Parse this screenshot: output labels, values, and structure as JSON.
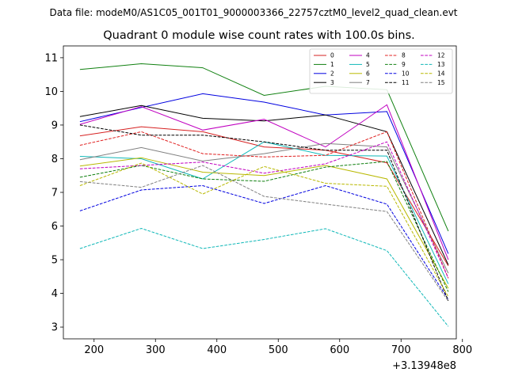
{
  "figure": {
    "suptitle": "Data file: modeM0/AS1C05_001T01_9000003366_22757cztM0_level2_quad_clean.evt"
  },
  "chart_data": {
    "type": "line",
    "title": "Quadrant 0 module wise count rates with 100.0s bins.",
    "xlabel": "",
    "ylabel": "",
    "x_offset_label": "+3.13948e8",
    "x": [
      177,
      277,
      377,
      477,
      577,
      677,
      777
    ],
    "xlim": [
      150,
      790
    ],
    "ylim": [
      2.65,
      11.35
    ],
    "xticks": [
      200,
      300,
      400,
      500,
      600,
      700,
      800
    ],
    "yticks": [
      3,
      4,
      5,
      6,
      7,
      8,
      9,
      10,
      11
    ],
    "legend_position": "upper right",
    "legend_ncol": 4,
    "series": [
      {
        "name": "0",
        "color": "#d62020",
        "dash": "solid",
        "values": [
          8.68,
          8.95,
          8.8,
          8.35,
          8.25,
          7.88,
          4.82
        ]
      },
      {
        "name": "1",
        "color": "#108010",
        "dash": "solid",
        "values": [
          10.65,
          10.82,
          10.7,
          9.88,
          10.15,
          10.05,
          5.85
        ]
      },
      {
        "name": "2",
        "color": "#0000e0",
        "dash": "solid",
        "values": [
          9.1,
          9.52,
          9.93,
          9.68,
          9.3,
          9.4,
          5.18
        ]
      },
      {
        "name": "3",
        "color": "#000000",
        "dash": "solid",
        "values": [
          9.25,
          9.58,
          9.2,
          9.12,
          9.3,
          8.8,
          4.85
        ]
      },
      {
        "name": "4",
        "color": "#c000c0",
        "dash": "solid",
        "values": [
          9.02,
          9.55,
          8.85,
          9.17,
          8.35,
          9.6,
          5.0
        ]
      },
      {
        "name": "5",
        "color": "#10b8b8",
        "dash": "solid",
        "values": [
          8.07,
          8.0,
          7.4,
          8.5,
          8.1,
          8.08,
          4.28
        ]
      },
      {
        "name": "6",
        "color": "#b8b800",
        "dash": "solid",
        "values": [
          7.78,
          8.03,
          7.6,
          7.5,
          7.8,
          7.4,
          4.15
        ]
      },
      {
        "name": "7",
        "color": "#808080",
        "dash": "solid",
        "values": [
          7.97,
          8.33,
          7.93,
          8.15,
          8.45,
          8.35,
          4.6
        ]
      },
      {
        "name": "8",
        "color": "#e02020",
        "dash": "dashed",
        "values": [
          8.4,
          8.8,
          8.15,
          8.05,
          8.1,
          8.8,
          4.45
        ]
      },
      {
        "name": "9",
        "color": "#108010",
        "dash": "dashed",
        "values": [
          7.45,
          7.8,
          7.4,
          7.33,
          7.75,
          7.92,
          4.05
        ]
      },
      {
        "name": "10",
        "color": "#0000e0",
        "dash": "dashed",
        "values": [
          6.45,
          7.07,
          7.2,
          6.67,
          7.2,
          6.65,
          3.82
        ]
      },
      {
        "name": "11",
        "color": "#000000",
        "dash": "dashed",
        "values": [
          9.0,
          8.7,
          8.7,
          8.5,
          8.25,
          8.25,
          3.78
        ]
      },
      {
        "name": "12",
        "color": "#c000c0",
        "dash": "dashed",
        "values": [
          7.7,
          7.8,
          7.9,
          7.57,
          7.85,
          8.5,
          4.45
        ]
      },
      {
        "name": "13",
        "color": "#10b8b8",
        "dash": "dashed",
        "values": [
          5.33,
          5.93,
          5.33,
          5.6,
          5.92,
          5.27,
          3.02
        ]
      },
      {
        "name": "14",
        "color": "#b8b800",
        "dash": "dashed",
        "values": [
          7.2,
          7.87,
          6.95,
          7.77,
          7.27,
          7.18,
          3.9
        ]
      },
      {
        "name": "15",
        "color": "#808080",
        "dash": "dashed",
        "values": [
          7.32,
          7.15,
          7.8,
          6.88,
          6.65,
          6.43,
          3.77
        ]
      }
    ]
  }
}
